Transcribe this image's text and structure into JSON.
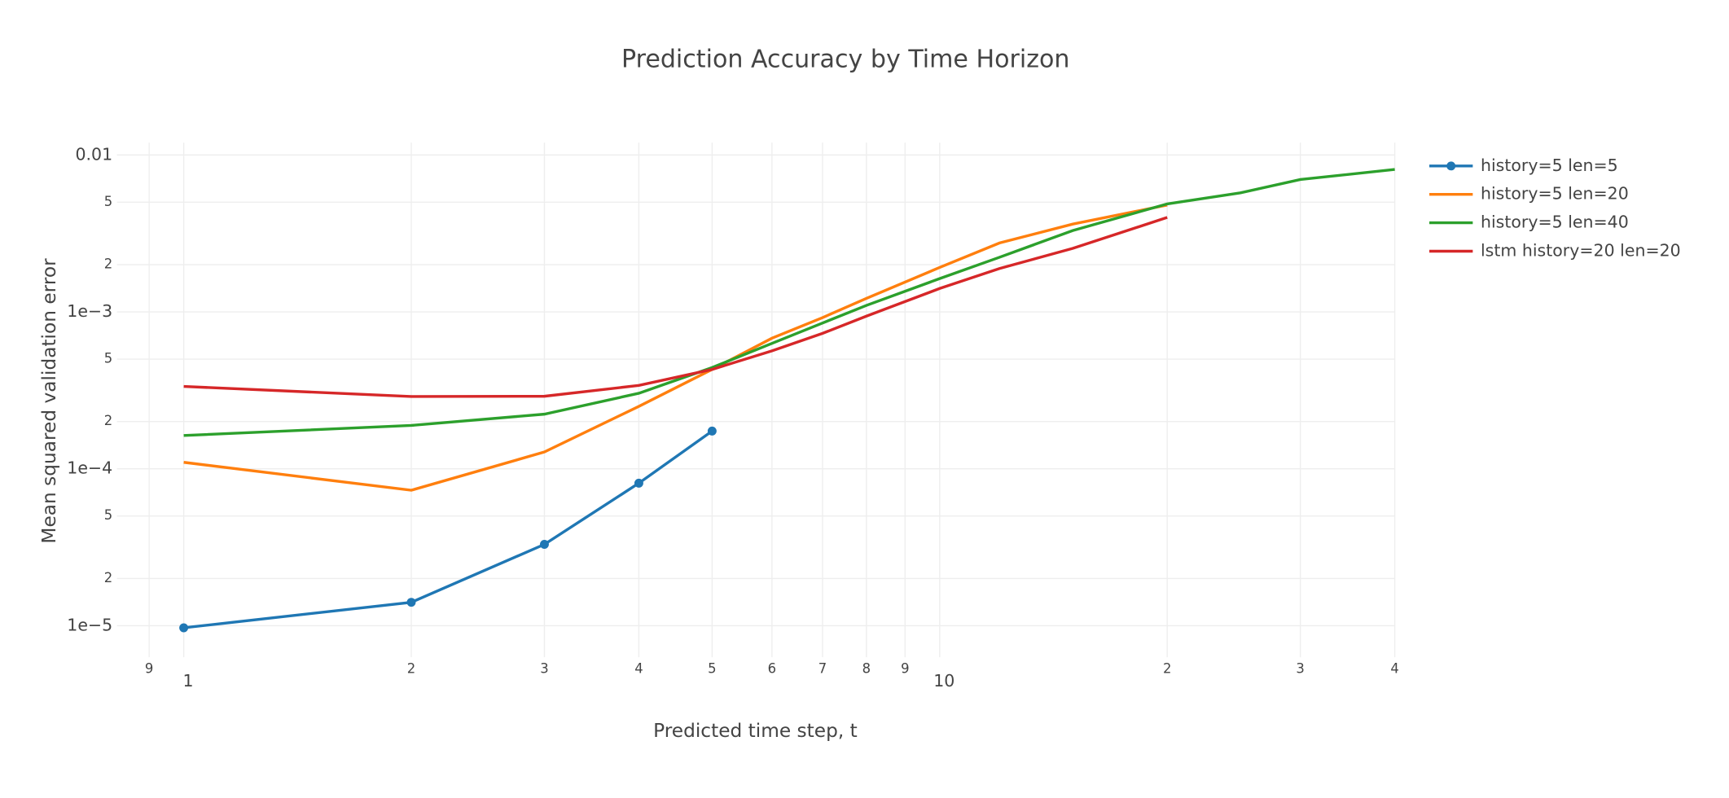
{
  "chart_data": {
    "type": "line",
    "title": "Prediction Accuracy by Time Horizon",
    "x_label": "Predicted time step, t",
    "y_label": "Mean squared validation error",
    "x_log": true,
    "y_log": true,
    "grid": true,
    "legend": "right",
    "xlim": [
      0.816,
      40
    ],
    "ylim": [
      6.3e-06,
      0.012
    ],
    "xticks": [
      {
        "value": 0.9,
        "label": "9"
      },
      1,
      2,
      3,
      4,
      5,
      6,
      7,
      8,
      9,
      10,
      {
        "value": 20,
        "label": "2"
      },
      {
        "value": 30,
        "label": "3"
      },
      {
        "value": 40,
        "label": "4"
      }
    ],
    "yticks": [
      {
        "value": 1e-05,
        "label": "1e−5"
      },
      {
        "value": 2e-05,
        "label": "2"
      },
      {
        "value": 5e-05,
        "label": "5"
      },
      {
        "value": 0.0001,
        "label": "1e−4"
      },
      {
        "value": 0.0002,
        "label": "2"
      },
      {
        "value": 0.0005,
        "label": "5"
      },
      {
        "value": 0.001,
        "label": "1e−3"
      },
      {
        "value": 0.002,
        "label": "2"
      },
      {
        "value": 0.005,
        "label": "5"
      },
      0.01
    ],
    "series": [
      {
        "name": "history=5 len=5",
        "color": "#1f77b4",
        "markers": true,
        "x": [
          1,
          2,
          3,
          4,
          5
        ],
        "values": [
          9.7e-06,
          1.41e-05,
          3.3e-05,
          8.1e-05,
          0.000174
        ]
      },
      {
        "name": "history=5 len=20",
        "color": "#ff7f0e",
        "x": [
          1,
          2,
          3,
          4,
          5,
          6,
          7,
          8,
          10,
          12,
          15,
          20
        ],
        "values": [
          0.00011,
          7.3e-05,
          0.000128,
          0.00025,
          0.00043,
          0.00068,
          0.00092,
          0.00122,
          0.00192,
          0.00275,
          0.00363,
          0.0048
        ]
      },
      {
        "name": "history=5 len=40",
        "color": "#2ca02c",
        "x": [
          1,
          2,
          3,
          4,
          5,
          6,
          7,
          8,
          10,
          12,
          15,
          20,
          25,
          30,
          40
        ],
        "values": [
          0.000163,
          0.000189,
          0.000223,
          0.000303,
          0.000442,
          0.00063,
          0.00085,
          0.0011,
          0.00163,
          0.00223,
          0.0033,
          0.00488,
          0.00574,
          0.00698,
          0.00809
        ]
      },
      {
        "name": "lstm history=20 len=20",
        "color": "#d62728",
        "x": [
          1,
          2,
          3,
          4,
          5,
          6,
          7,
          8,
          10,
          12,
          15,
          20
        ],
        "values": [
          0.000335,
          0.000289,
          0.00029,
          0.00034,
          0.00043,
          0.000565,
          0.00073,
          0.00094,
          0.00141,
          0.00189,
          0.00254,
          0.004
        ]
      }
    ]
  }
}
